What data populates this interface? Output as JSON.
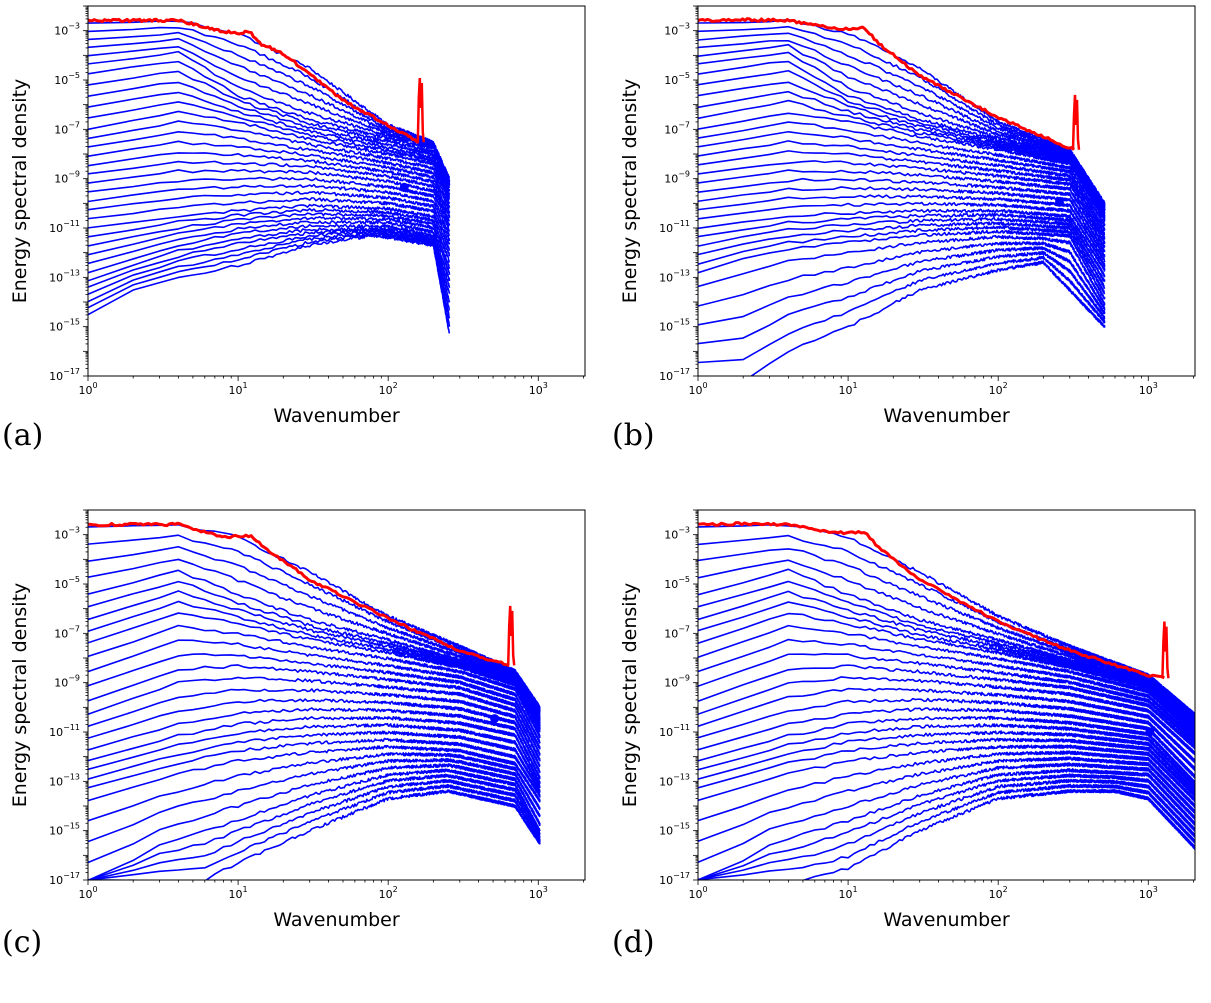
{
  "colors": {
    "spectra": "#0000ff",
    "initial": "#ff0000",
    "axes": "#000000"
  },
  "chart_data": [
    {
      "type": "line",
      "panel": "(a)",
      "xlabel": "Wavenumber",
      "ylabel": "Energy spectral density",
      "xscale": "log",
      "yscale": "log",
      "xlim": [
        1,
        2048
      ],
      "ylim": [
        1e-17,
        0.01
      ],
      "x_ticks": [
        "10^0",
        "10^1",
        "10^2",
        "10^3"
      ],
      "y_ticks": [
        "10^-17",
        "10^-15",
        "10^-13",
        "10^-11",
        "10^-9",
        "10^-7",
        "10^-5",
        "10^-3"
      ],
      "x_cutoff": 256,
      "red_spike_x": 165,
      "red_spike_peak": 1.2e-05,
      "n_blue_curves": 34,
      "marker": {
        "x": 128,
        "y": 4.5e-10
      },
      "red_curve": {
        "x": [
          1,
          2,
          4,
          8,
          10,
          12,
          14,
          20,
          50,
          100,
          160
        ],
        "y": [
          0.0025,
          0.0026,
          0.0026,
          0.0009,
          0.0008,
          0.0009,
          0.0003,
          0.00012,
          1.5e-06,
          1.5e-07,
          3e-08
        ]
      },
      "blue_curves": [
        {
          "x": [
            1,
            4,
            10,
            30,
            100,
            200,
            256
          ],
          "y": [
            0.002,
            0.0025,
            0.0008,
            3e-05,
            1.5e-07,
            3e-08,
            1e-09
          ]
        },
        {
          "x": [
            1,
            4,
            10,
            30,
            100,
            200,
            256
          ],
          "y": [
            3e-05,
            0.0001,
            3e-06,
            3e-07,
            5e-08,
            2e-08,
            5e-10
          ]
        },
        {
          "x": [
            1,
            4,
            10,
            30,
            100,
            200,
            256
          ],
          "y": [
            1e-07,
            5e-07,
            2e-07,
            4e-08,
            1e-08,
            4e-09,
            1e-10
          ]
        },
        {
          "x": [
            1,
            4,
            10,
            30,
            100,
            200,
            256
          ],
          "y": [
            1e-09,
            3e-09,
            3e-09,
            2.5e-09,
            1e-09,
            4e-10,
            1e-11
          ]
        },
        {
          "x": [
            1,
            4,
            10,
            30,
            100,
            200,
            256
          ],
          "y": [
            1e-11,
            3e-11,
            5e-11,
            8e-11,
            6e-11,
            3e-11,
            8e-13
          ]
        },
        {
          "x": [
            1,
            2,
            4,
            10,
            30,
            100,
            200,
            256
          ],
          "y": [
            1e-13,
            4e-13,
            1.5e-12,
            5e-12,
            1e-11,
            1e-11,
            4e-12,
            3e-14
          ]
        },
        {
          "x": [
            1,
            2,
            4,
            10,
            30,
            80,
            200,
            256
          ],
          "y": [
            3e-15,
            3e-14,
            1e-13,
            3e-13,
            2e-12,
            5e-12,
            2e-12,
            5e-16
          ]
        }
      ]
    },
    {
      "type": "line",
      "panel": "(b)",
      "xlabel": "Wavenumber",
      "ylabel": "Energy spectral density",
      "xscale": "log",
      "yscale": "log",
      "xlim": [
        1,
        2048
      ],
      "ylim": [
        1e-17,
        0.01
      ],
      "x_ticks": [
        "10^0",
        "10^1",
        "10^2",
        "10^3"
      ],
      "y_ticks": [
        "10^-17",
        "10^-15",
        "10^-13",
        "10^-11",
        "10^-9",
        "10^-7",
        "10^-5",
        "10^-3"
      ],
      "x_cutoff": 512,
      "red_spike_x": 330,
      "red_spike_peak": 2.5e-06,
      "n_blue_curves": 34,
      "marker": {
        "x": 256,
        "y": 1.1e-10
      },
      "red_curve": {
        "x": [
          1,
          2,
          4,
          8,
          11,
          13,
          16,
          30,
          100,
          200,
          320
        ],
        "y": [
          0.0025,
          0.0028,
          0.0026,
          0.0012,
          0.0012,
          0.0013,
          0.0003,
          1.5e-05,
          3e-07,
          5e-08,
          1.5e-08
        ]
      },
      "blue_curves": [
        {
          "x": [
            1,
            4,
            10,
            30,
            100,
            300,
            512
          ],
          "y": [
            0.002,
            0.0025,
            0.0008,
            3e-05,
            2e-07,
            1.5e-08,
            1e-10
          ]
        },
        {
          "x": [
            1,
            4,
            10,
            30,
            100,
            300,
            512
          ],
          "y": [
            3e-05,
            0.0001,
            3e-06,
            3e-07,
            4e-08,
            8e-09,
            5e-11
          ]
        },
        {
          "x": [
            1,
            4,
            10,
            30,
            100,
            300,
            512
          ],
          "y": [
            1e-07,
            5e-07,
            2e-07,
            5e-08,
            1.5e-08,
            4e-09,
            2e-11
          ]
        },
        {
          "x": [
            1,
            4,
            10,
            30,
            100,
            300,
            512
          ],
          "y": [
            1e-09,
            3e-09,
            3e-09,
            2e-09,
            1e-09,
            5e-10,
            2e-12
          ]
        },
        {
          "x": [
            1,
            4,
            10,
            30,
            100,
            300,
            512
          ],
          "y": [
            1e-11,
            3e-11,
            4e-11,
            5e-11,
            5e-11,
            3e-11,
            2e-13
          ]
        },
        {
          "x": [
            1,
            2,
            4,
            10,
            30,
            100,
            300,
            512
          ],
          "y": [
            1e-13,
            4e-13,
            1e-12,
            2e-12,
            4e-12,
            6e-12,
            4e-12,
            1e-14
          ]
        },
        {
          "x": [
            2,
            4,
            10,
            30,
            100,
            200,
            512
          ],
          "y": [
            6e-18,
            1e-16,
            1e-15,
            3e-14,
            2e-13,
            4e-13,
            1e-15
          ]
        }
      ]
    },
    {
      "type": "line",
      "panel": "(c)",
      "xlabel": "Wavenumber",
      "ylabel": "Energy spectral density",
      "xscale": "log",
      "yscale": "log",
      "xlim": [
        1,
        2048
      ],
      "ylim": [
        1e-17,
        0.01
      ],
      "x_ticks": [
        "10^0",
        "10^1",
        "10^2",
        "10^3"
      ],
      "y_ticks": [
        "10^-17",
        "10^-15",
        "10^-13",
        "10^-11",
        "10^-9",
        "10^-7",
        "10^-5",
        "10^-3"
      ],
      "x_cutoff": 1024,
      "red_spike_x": 660,
      "red_spike_peak": 1.3e-06,
      "n_blue_curves": 30,
      "marker": {
        "x": 512,
        "y": 3.5e-11
      },
      "red_curve": {
        "x": [
          1,
          2,
          4,
          8,
          12,
          15,
          30,
          100,
          300,
          640
        ],
        "y": [
          0.0025,
          0.0026,
          0.0026,
          0.0008,
          0.0009,
          0.0003,
          1.5e-05,
          4e-07,
          2e-08,
          5e-09
        ]
      },
      "blue_curves": [
        {
          "x": [
            1,
            4,
            10,
            30,
            100,
            300,
            700,
            1024
          ],
          "y": [
            0.002,
            0.0025,
            0.0008,
            3e-05,
            5e-07,
            3e-08,
            3e-09,
            1e-10
          ]
        },
        {
          "x": [
            1,
            4,
            10,
            30,
            100,
            300,
            700,
            1024
          ],
          "y": [
            3e-06,
            3e-05,
            3e-06,
            3e-07,
            5e-08,
            8e-09,
            1.5e-09,
            3e-11
          ]
        },
        {
          "x": [
            1,
            4,
            10,
            30,
            100,
            300,
            700,
            1024
          ],
          "y": [
            3e-08,
            5e-07,
            2e-07,
            5e-08,
            1.5e-08,
            4e-09,
            8e-10,
            1e-11
          ]
        },
        {
          "x": [
            1,
            4,
            10,
            30,
            100,
            300,
            700,
            1024
          ],
          "y": [
            1e-10,
            2e-09,
            3e-09,
            2e-09,
            1e-09,
            5e-10,
            1e-10,
            1e-12
          ]
        },
        {
          "x": [
            1,
            4,
            10,
            30,
            100,
            300,
            700,
            1024
          ],
          "y": [
            1e-12,
            1e-11,
            3e-11,
            5e-11,
            5e-11,
            3e-11,
            1e-11,
            1e-13
          ]
        },
        {
          "x": [
            1,
            4,
            10,
            30,
            100,
            300,
            700,
            1024
          ],
          "y": [
            3e-14,
            3e-13,
            1e-12,
            2e-12,
            3e-12,
            2e-12,
            6e-13,
            2e-14
          ]
        },
        {
          "x": [
            1.2,
            3,
            10,
            30,
            100,
            250,
            700,
            1024
          ],
          "y": [
            1e-17,
            3e-16,
            3e-15,
            3e-14,
            2e-13,
            3e-13,
            8e-14,
            1e-15
          ]
        },
        {
          "x": [
            6,
            10,
            30,
            100,
            250,
            700,
            1024
          ],
          "y": [
            1e-17,
            5e-17,
            1e-15,
            2e-14,
            4e-14,
            1e-14,
            3e-16
          ]
        }
      ]
    },
    {
      "type": "line",
      "panel": "(d)",
      "xlabel": "Wavenumber",
      "ylabel": "Energy spectral density",
      "xscale": "log",
      "yscale": "log",
      "xlim": [
        1,
        2048
      ],
      "ylim": [
        1e-17,
        0.01
      ],
      "x_ticks": [
        "10^0",
        "10^1",
        "10^2",
        "10^3"
      ],
      "y_ticks": [
        "10^-17",
        "10^-15",
        "10^-13",
        "10^-11",
        "10^-9",
        "10^-7",
        "10^-5",
        "10^-3"
      ],
      "x_cutoff": 2048,
      "red_spike_x": 1300,
      "red_spike_peak": 3e-07,
      "n_blue_curves": 30,
      "marker": {
        "x": 1024,
        "y": 1e-11
      },
      "red_curve": {
        "x": [
          1,
          2,
          4,
          8,
          11,
          13,
          16,
          30,
          100,
          300,
          1000,
          1280
        ],
        "y": [
          0.0025,
          0.0028,
          0.0026,
          0.0012,
          0.0012,
          0.0013,
          0.0003,
          1.5e-05,
          3e-07,
          2e-08,
          2e-09,
          1.5e-09
        ]
      },
      "blue_curves": [
        {
          "x": [
            1,
            4,
            10,
            30,
            100,
            300,
            1000,
            2048
          ],
          "y": [
            0.002,
            0.0025,
            0.0008,
            3e-05,
            5e-07,
            3e-08,
            2e-09,
            5e-11
          ]
        },
        {
          "x": [
            1,
            4,
            10,
            30,
            100,
            300,
            1000,
            2048
          ],
          "y": [
            3e-06,
            3e-05,
            3e-06,
            3e-07,
            5e-08,
            8e-09,
            1e-09,
            2e-11
          ]
        },
        {
          "x": [
            1,
            4,
            10,
            30,
            100,
            300,
            1000,
            2048
          ],
          "y": [
            3e-08,
            5e-07,
            2e-07,
            5e-08,
            1.5e-08,
            4e-09,
            6e-10,
            1e-11
          ]
        },
        {
          "x": [
            1,
            4,
            10,
            30,
            100,
            300,
            1000,
            2048
          ],
          "y": [
            1e-10,
            2e-09,
            3e-09,
            2e-09,
            1e-09,
            5e-10,
            1e-10,
            2e-12
          ]
        },
        {
          "x": [
            1,
            4,
            10,
            30,
            100,
            300,
            1000,
            2048
          ],
          "y": [
            1e-12,
            1e-11,
            3e-11,
            5e-11,
            5e-11,
            3e-11,
            1e-11,
            1e-13
          ]
        },
        {
          "x": [
            1,
            4,
            10,
            30,
            100,
            300,
            1000,
            2048
          ],
          "y": [
            3e-14,
            3e-13,
            1e-12,
            2e-12,
            3e-12,
            3e-12,
            1.5e-12,
            2e-14
          ]
        },
        {
          "x": [
            1.2,
            3,
            10,
            30,
            100,
            300,
            1000,
            2048
          ],
          "y": [
            1e-17,
            3e-16,
            3e-15,
            3e-14,
            2e-13,
            3e-13,
            2e-13,
            2e-15
          ]
        },
        {
          "x": [
            5,
            10,
            30,
            100,
            300,
            600,
            1000,
            2048
          ],
          "y": [
            1e-17,
            3e-17,
            1e-15,
            2e-14,
            4e-14,
            4e-14,
            2e-14,
            2e-16
          ]
        }
      ]
    }
  ]
}
